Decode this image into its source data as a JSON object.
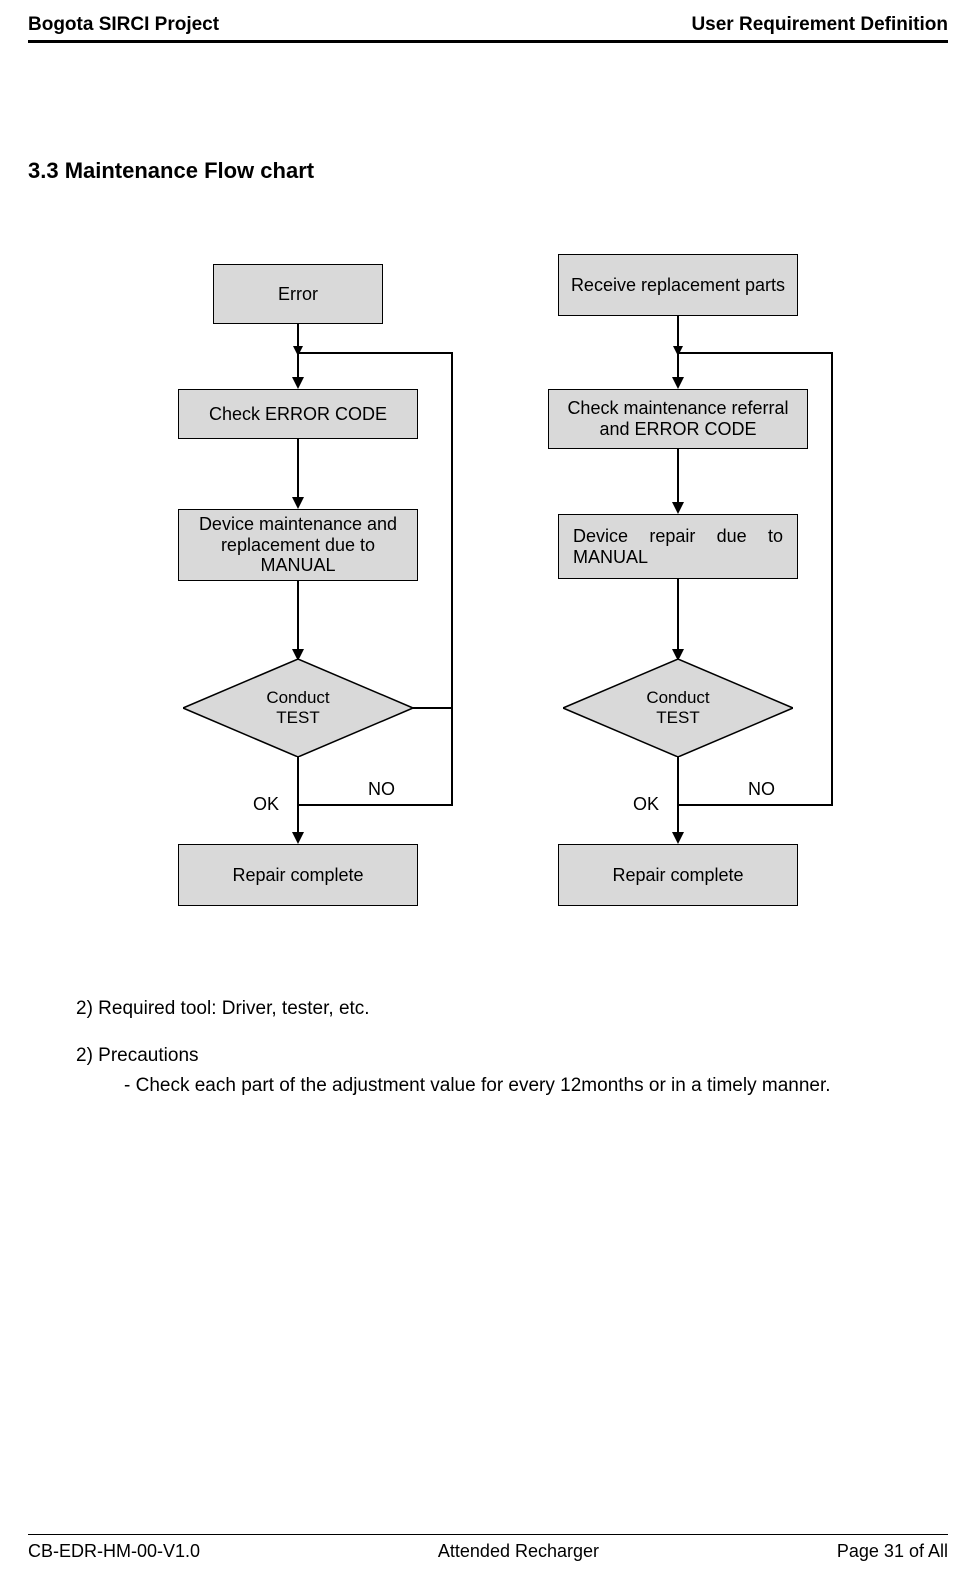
{
  "header": {
    "left": "Bogota SIRCI Project",
    "right": "User Requirement Definition"
  },
  "section": {
    "title": "3.3   Maintenance Flow chart"
  },
  "flow_left": {
    "n1": "Error",
    "n2": "Check ERROR CODE",
    "n3": "Device maintenance and replacement due to MANUAL",
    "n4": "Conduct\nTEST",
    "n5": "Repair complete",
    "ok": "OK",
    "no": "NO",
    "box_fill": "#d9d9d9",
    "border": "#000000"
  },
  "flow_right": {
    "n1": "Receive replacement parts",
    "n2": "Check maintenance referral and ERROR CODE",
    "n3": "Device  repair  due  to MANUAL",
    "n4": "Conduct\nTEST",
    "n5": "Repair complete",
    "ok": "OK",
    "no": "NO"
  },
  "body": {
    "l1": "2)   Required tool: Driver, tester, etc.",
    "l2": "2) Precautions",
    "l3": "-   Check each part of the adjustment value for every 12months or in a timely manner."
  },
  "footer": {
    "left": "CB-EDR-HM-00-V1.0",
    "center": "Attended Recharger",
    "right": "Page 31 of All"
  }
}
